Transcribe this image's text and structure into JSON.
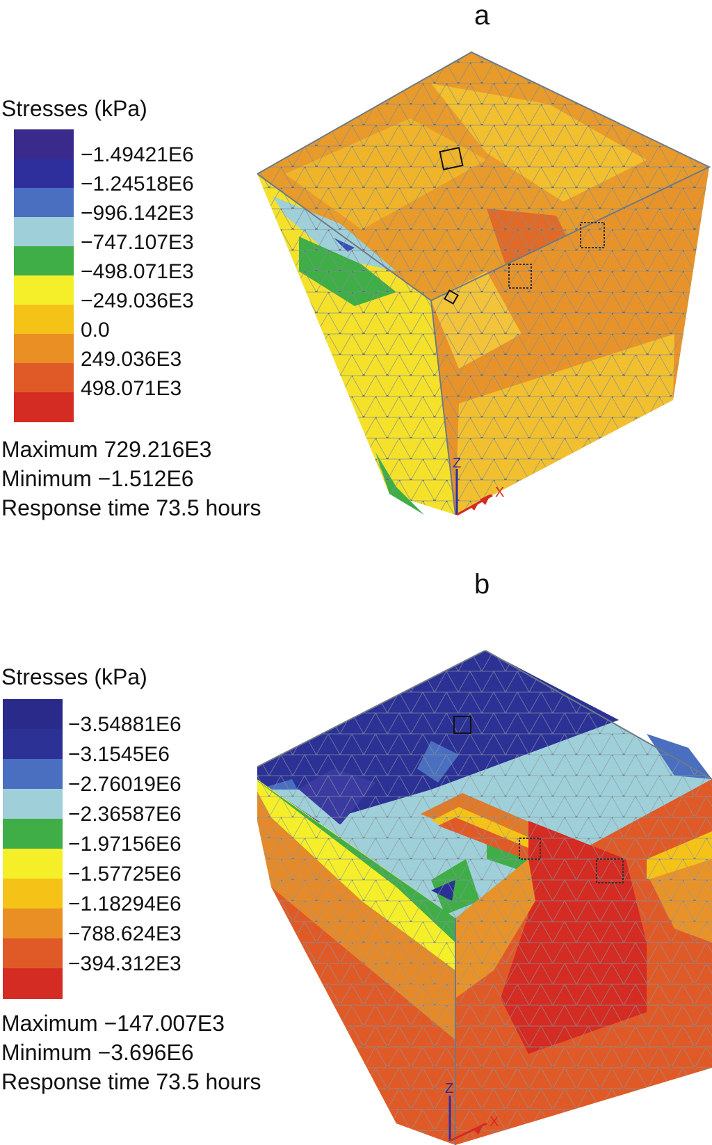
{
  "panel_a": {
    "letter": "a",
    "legend_title": "Stresses (kPa)",
    "swatches": [
      "#3a2a8c",
      "#2e2f9c",
      "#4a6fc0",
      "#9fcfd8",
      "#3fae47",
      "#f5ef2a",
      "#f5c318",
      "#ea8f24",
      "#e05a28",
      "#d42b22"
    ],
    "ticks": [
      "−1.49421E6",
      "−1.24518E6",
      "−996.142E3",
      "−747.107E3",
      "−498.071E3",
      "−249.036E3",
      "0.0",
      "249.036E3",
      "498.071E3"
    ],
    "maximum": "Maximum 729.216E3",
    "minimum": "Minimum −1.512E6",
    "response_time": "Response time 73.5 hours",
    "axis_z": "Z",
    "axis_x": "X"
  },
  "panel_b": {
    "letter": "b",
    "legend_title": "Stresses (kPa)",
    "swatches": [
      "#2a2a8a",
      "#2c3196",
      "#4a6fc0",
      "#9fcfd8",
      "#3fae47",
      "#f5ef2a",
      "#f5c318",
      "#ea8f24",
      "#e05a28",
      "#d42b22"
    ],
    "ticks": [
      "−3.54881E6",
      "−3.1545E6",
      "−2.76019E6",
      "−2.36587E6",
      "−1.97156E6",
      "−1.57725E6",
      "−1.18294E6",
      "−788.624E3",
      "−394.312E3"
    ],
    "maximum": "Maximum −147.007E3",
    "minimum": "Minimum −3.696E6",
    "response_time": "Response time 73.5 hours",
    "axis_z": "Z",
    "axis_x": "X"
  }
}
